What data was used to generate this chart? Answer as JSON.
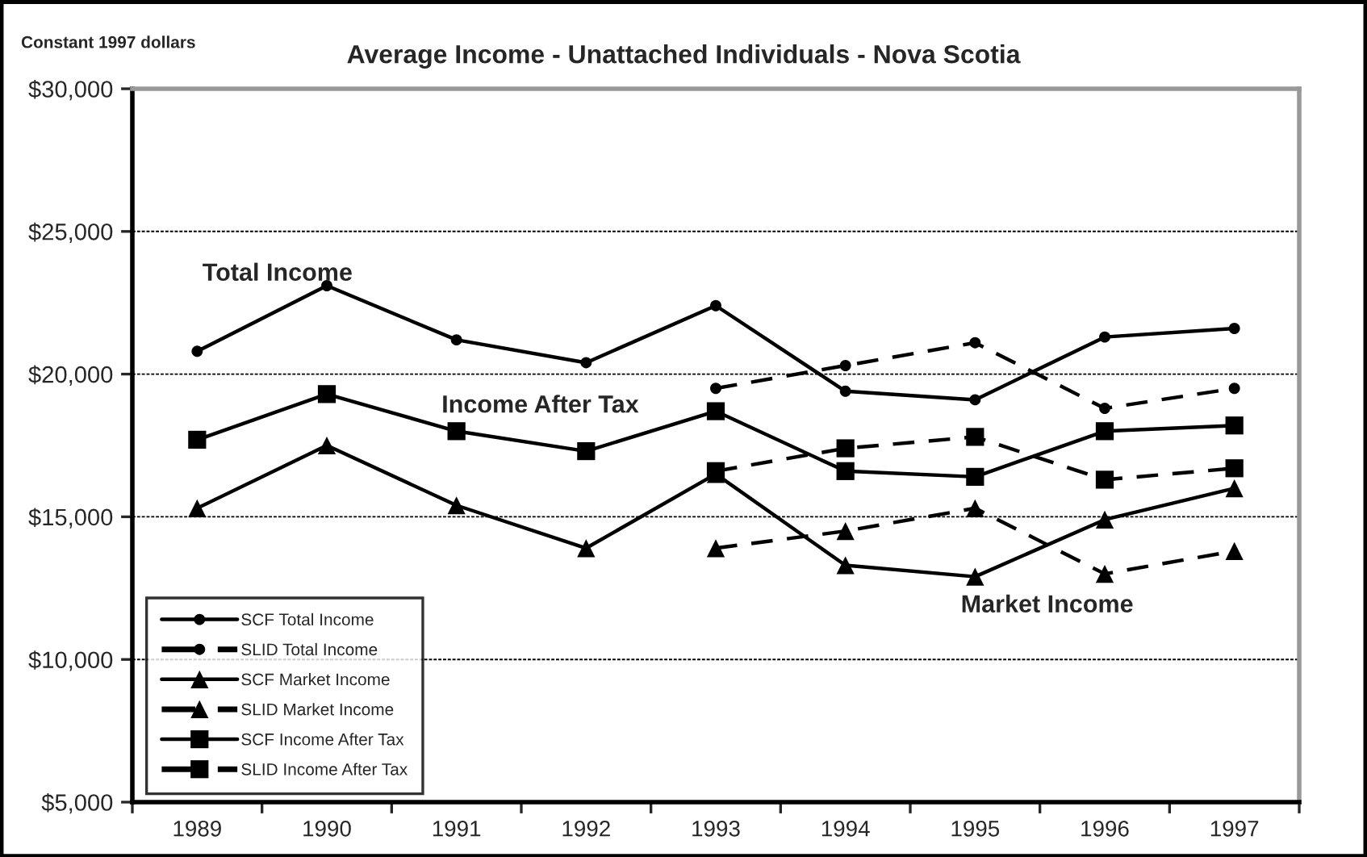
{
  "chart_data": {
    "type": "line",
    "title": "Average Income - Unattached Individuals - Nova Scotia",
    "annotations": [
      "Constant 1997 dollars",
      "Total Income",
      "Income After Tax",
      "Market Income"
    ],
    "categories": [
      "1989",
      "1990",
      "1991",
      "1992",
      "1993",
      "1994",
      "1995",
      "1996",
      "1997"
    ],
    "series": [
      {
        "name": "SCF Total Income",
        "color": "#000000",
        "marker": "circle",
        "line_style": "solid",
        "values": [
          20800,
          23100,
          21200,
          20400,
          22400,
          19400,
          19100,
          21300,
          21600
        ]
      },
      {
        "name": "SLID Total Income",
        "color": "#000000",
        "marker": "circle",
        "line_style": "dashed",
        "values": [
          null,
          null,
          null,
          null,
          19500,
          20300,
          21100,
          18800,
          19500
        ]
      },
      {
        "name": "SCF Market Income",
        "color": "#000000",
        "marker": "triangle",
        "line_style": "solid",
        "values": [
          15300,
          17500,
          15400,
          13900,
          16500,
          13300,
          12900,
          14900,
          16000
        ]
      },
      {
        "name": "SLID Market Income",
        "color": "#000000",
        "marker": "triangle",
        "line_style": "dashed",
        "values": [
          null,
          null,
          null,
          null,
          13900,
          14500,
          15300,
          13000,
          13800
        ]
      },
      {
        "name": "SCF Income After Tax",
        "color": "#000000",
        "marker": "square",
        "line_style": "solid",
        "values": [
          17700,
          19300,
          18000,
          17300,
          18700,
          16600,
          16400,
          18000,
          18200
        ]
      },
      {
        "name": "SLID Income After Tax",
        "color": "#000000",
        "marker": "square",
        "line_style": "dashed",
        "values": [
          null,
          null,
          null,
          null,
          16600,
          17400,
          17800,
          16300,
          16700
        ]
      }
    ],
    "ylim": [
      5000,
      30000
    ],
    "yticks": [
      {
        "value": 5000,
        "label": "$5,000"
      },
      {
        "value": 10000,
        "label": "$10,000"
      },
      {
        "value": 15000,
        "label": "$15,000"
      },
      {
        "value": 20000,
        "label": "$20,000"
      },
      {
        "value": 25000,
        "label": "$25,000"
      },
      {
        "value": 30000,
        "label": "$30,000"
      }
    ],
    "grid": "y",
    "legend": "bottom left"
  }
}
